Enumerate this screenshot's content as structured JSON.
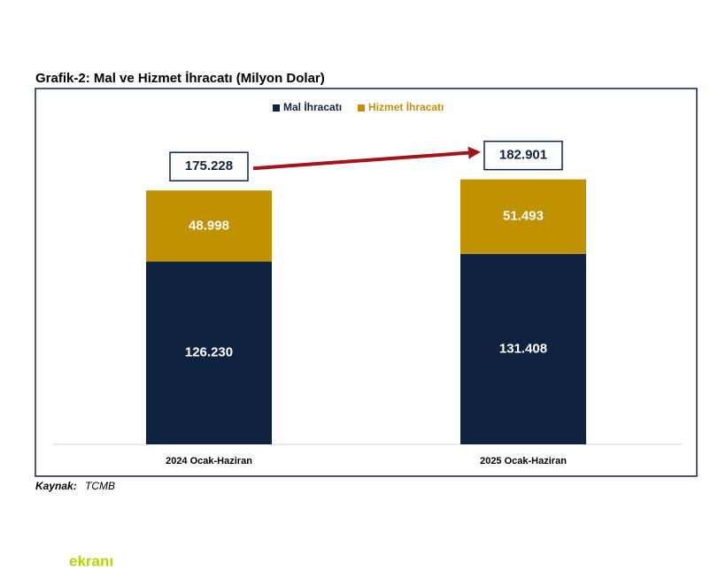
{
  "chart_data": {
    "type": "stacked-bar",
    "title": "Grafik-2: Mal ve Hizmet İhracatı (Milyon Dolar)",
    "categories": [
      "2024 Ocak-Haziran",
      "2025 Ocak-Haziran"
    ],
    "series": [
      {
        "name": "Mal İhracatı",
        "color": "#0f2341",
        "values": [
          126230,
          131408
        ],
        "value_labels": [
          "126.230",
          "131.408"
        ]
      },
      {
        "name": "Hizmet İhracatı",
        "color": "#c09100",
        "values": [
          48998,
          51493
        ],
        "value_labels": [
          "48.998",
          "51.493"
        ]
      }
    ],
    "totals": {
      "values": [
        175228,
        182901
      ],
      "value_labels": [
        "175.228",
        "182.901"
      ]
    },
    "ylim": [
      0,
      245000
    ],
    "source_label": "Kaynak:",
    "source": "TCMB",
    "watermark": "ekranı"
  }
}
